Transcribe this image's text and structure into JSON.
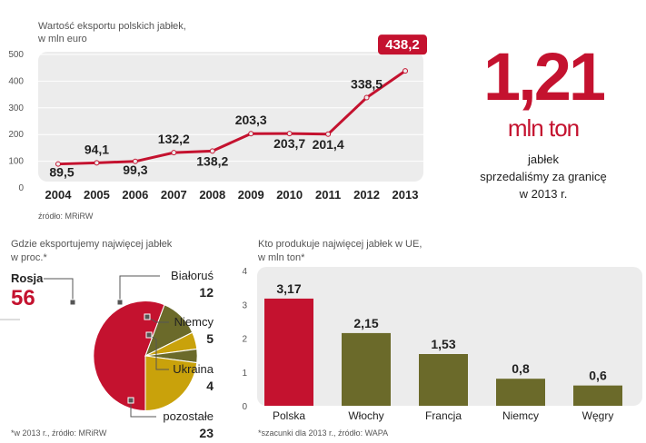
{
  "colors": {
    "red": "#c4122f",
    "olive": "#6b6a2a",
    "gold": "#c9a20b",
    "panel": "#ececec"
  },
  "chart_data": [
    {
      "type": "line",
      "title": "Wartość eksportu polskich jabłek,",
      "subtitle": "w mln euro",
      "x": [
        "2004",
        "2005",
        "2006",
        "2007",
        "2008",
        "2009",
        "2010",
        "2011",
        "2012",
        "2013"
      ],
      "values": [
        89.5,
        94.1,
        99.3,
        132.2,
        138.2,
        203.3,
        203.7,
        201.4,
        338.5,
        438.2
      ],
      "value_labels": [
        "89,5",
        "94,1",
        "99,3",
        "132,2",
        "138,2",
        "203,3",
        "203,7",
        "201,4",
        "338,5",
        "438,2"
      ],
      "ylim": [
        0,
        500
      ],
      "yticks": [
        "0",
        "100",
        "200",
        "300",
        "400",
        "500"
      ],
      "source": "źródło: MRiRW"
    },
    {
      "type": "pie",
      "title": "Gdzie eksportujemy najwięcej jabłek",
      "subtitle": "w proc.*",
      "slices": [
        {
          "name": "Rosja",
          "value": 56,
          "label": "56",
          "color": "#c4122f"
        },
        {
          "name": "Białoruś",
          "value": 12,
          "label": "12",
          "color": "#6b6a2a"
        },
        {
          "name": "Niemcy",
          "value": 5,
          "label": "5",
          "color": "#c9a20b"
        },
        {
          "name": "Ukraina",
          "value": 4,
          "label": "4",
          "color": "#6b6a2a"
        },
        {
          "name": "pozostałe",
          "value": 23,
          "label": "23",
          "color": "#c9a20b"
        }
      ],
      "source": "*w 2013 r., źródło: MRiRW"
    },
    {
      "type": "bar",
      "title": "Kto produkuje najwięcej jabłek w UE,",
      "subtitle": "w mln ton*",
      "categories": [
        "Polska",
        "Włochy",
        "Francja",
        "Niemcy",
        "Węgry"
      ],
      "values": [
        3.17,
        2.15,
        1.53,
        0.8,
        0.6
      ],
      "value_labels": [
        "3,17",
        "2,15",
        "1,53",
        "0,8",
        "0,6"
      ],
      "ylim": [
        0,
        4
      ],
      "yticks": [
        "0",
        "1",
        "2",
        "3",
        "4"
      ],
      "source": "*szacunki dla 2013 r., źródło: WAPA"
    }
  ],
  "highlight": {
    "number": "1,21",
    "unit": "mln ton",
    "line1": "jabłek",
    "line2": "sprzedaliśmy za granicę",
    "line3": "w 2013 r."
  }
}
